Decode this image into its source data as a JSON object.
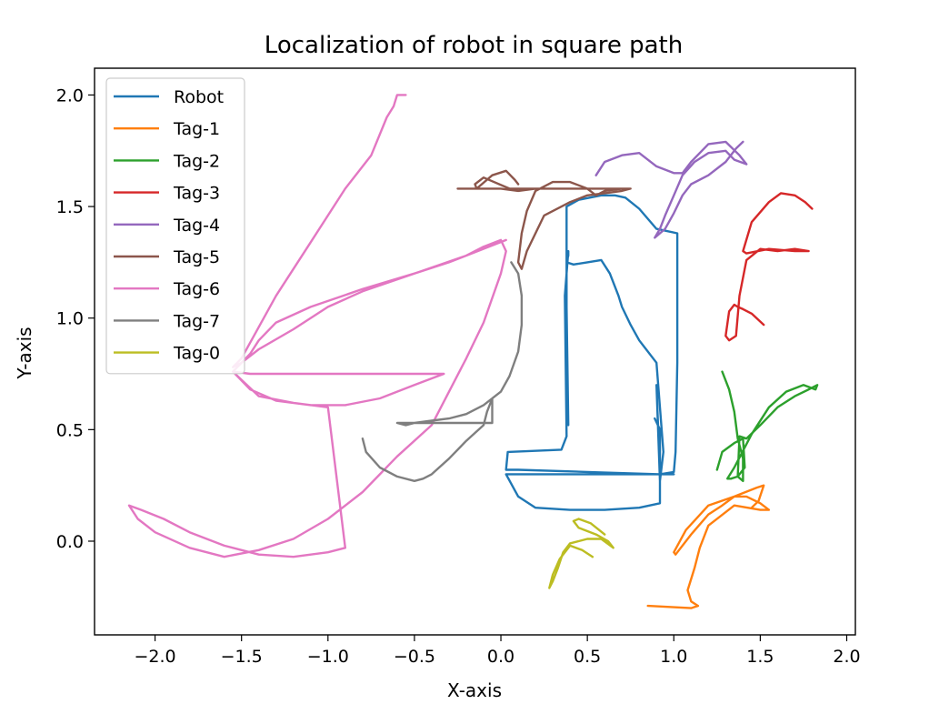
{
  "chart_data": {
    "type": "line",
    "title": "Localization of robot in square path",
    "xlabel": "X-axis",
    "ylabel": "Y-axis",
    "xlim": [
      -2.35,
      2.05
    ],
    "ylim": [
      -0.42,
      2.12
    ],
    "xticks": [
      -2.0,
      -1.5,
      -1.0,
      -0.5,
      0.0,
      0.5,
      1.0,
      1.5,
      2.0
    ],
    "xtick_labels": [
      "−2.0",
      "−1.5",
      "−1.0",
      "−0.5",
      "0.0",
      "0.5",
      "1.0",
      "1.5",
      "2.0"
    ],
    "yticks": [
      0.0,
      0.5,
      1.0,
      1.5,
      2.0
    ],
    "ytick_labels": [
      "0.0",
      "0.5",
      "1.0",
      "1.5",
      "2.0"
    ],
    "grid": false,
    "legend_position": "top-left",
    "series": [
      {
        "name": "Robot",
        "color": "#1f77b4",
        "x": [
          0.39,
          0.38,
          0.38,
          0.45,
          0.58,
          0.66,
          0.72,
          0.8,
          0.9,
          1.02,
          1.02,
          1.01,
          1.0,
          0.92,
          0.5,
          0.1,
          0.03,
          0.04,
          0.35,
          0.38,
          0.37,
          0.39,
          0.39,
          0.38,
          0.42,
          0.5,
          0.58,
          0.63,
          0.68,
          0.7,
          0.75,
          0.8,
          0.9,
          0.94,
          0.92,
          0.9,
          0.92,
          1.0,
          0.7,
          0.3,
          0.05,
          0.03,
          0.1,
          0.2,
          0.4,
          0.6,
          0.8,
          0.92,
          0.92,
          0.89
        ],
        "y": [
          0.52,
          1.05,
          1.5,
          1.53,
          1.55,
          1.55,
          1.54,
          1.49,
          1.4,
          1.38,
          0.8,
          0.4,
          0.31,
          0.3,
          0.31,
          0.32,
          0.32,
          0.4,
          0.41,
          0.47,
          1.1,
          1.3,
          1.28,
          1.25,
          1.24,
          1.25,
          1.26,
          1.2,
          1.1,
          1.05,
          0.97,
          0.9,
          0.8,
          0.4,
          0.27,
          0.7,
          0.3,
          0.3,
          0.3,
          0.3,
          0.3,
          0.3,
          0.2,
          0.15,
          0.14,
          0.14,
          0.15,
          0.17,
          0.5,
          0.55
        ]
      },
      {
        "name": "Tag-1",
        "color": "#ff7f0e",
        "x": [
          0.85,
          1.1,
          1.14,
          1.1,
          1.08,
          1.12,
          1.15,
          1.2,
          1.35,
          1.5,
          1.55,
          1.5,
          1.42,
          1.35,
          1.28,
          1.2,
          1.1,
          1.01,
          1.0,
          1.07,
          1.2,
          1.35,
          1.48,
          1.52,
          1.49,
          1.45
        ],
        "y": [
          -0.29,
          -0.3,
          -0.29,
          -0.27,
          -0.22,
          -0.12,
          -0.03,
          0.07,
          0.16,
          0.14,
          0.14,
          0.17,
          0.2,
          0.2,
          0.16,
          0.12,
          0.03,
          -0.06,
          -0.05,
          0.05,
          0.16,
          0.2,
          0.24,
          0.25,
          0.18,
          0.15
        ]
      },
      {
        "name": "Tag-2",
        "color": "#2ca02c",
        "x": [
          1.25,
          1.28,
          1.35,
          1.4,
          1.41,
          1.37,
          1.33,
          1.31,
          1.35,
          1.45,
          1.55,
          1.65,
          1.75,
          1.82,
          1.83,
          1.78,
          1.7,
          1.6,
          1.5,
          1.42,
          1.38,
          1.37,
          1.4,
          1.4,
          1.37,
          1.35,
          1.32,
          1.28
        ],
        "y": [
          0.32,
          0.4,
          0.44,
          0.46,
          0.33,
          0.29,
          0.28,
          0.28,
          0.33,
          0.48,
          0.6,
          0.67,
          0.7,
          0.68,
          0.7,
          0.68,
          0.65,
          0.6,
          0.52,
          0.46,
          0.47,
          0.29,
          0.27,
          0.37,
          0.46,
          0.58,
          0.68,
          0.76
        ]
      },
      {
        "name": "Tag-3",
        "color": "#d62728",
        "x": [
          1.52,
          1.45,
          1.4,
          1.37,
          1.35,
          1.32,
          1.3,
          1.32,
          1.36,
          1.38,
          1.42,
          1.5,
          1.6,
          1.7,
          1.78,
          1.7,
          1.55,
          1.42,
          1.4,
          1.45,
          1.55,
          1.62,
          1.7,
          1.76,
          1.8
        ],
        "y": [
          0.97,
          1.02,
          1.04,
          1.05,
          1.06,
          1.03,
          0.92,
          0.9,
          0.92,
          1.1,
          1.26,
          1.31,
          1.3,
          1.31,
          1.3,
          1.3,
          1.31,
          1.29,
          1.3,
          1.43,
          1.52,
          1.56,
          1.55,
          1.52,
          1.49
        ]
      },
      {
        "name": "Tag-4",
        "color": "#9467bd",
        "x": [
          0.55,
          0.6,
          0.7,
          0.8,
          0.9,
          1.0,
          1.05,
          1.1,
          1.2,
          1.3,
          1.38,
          1.42,
          1.35,
          1.3,
          1.2,
          1.12,
          1.05,
          1.0,
          0.95,
          0.92,
          0.89,
          0.95,
          1.0,
          1.05,
          1.1,
          1.2,
          1.3,
          1.36,
          1.4
        ],
        "y": [
          1.64,
          1.7,
          1.73,
          1.74,
          1.68,
          1.65,
          1.65,
          1.7,
          1.78,
          1.79,
          1.73,
          1.69,
          1.71,
          1.75,
          1.74,
          1.7,
          1.64,
          1.55,
          1.46,
          1.4,
          1.36,
          1.4,
          1.47,
          1.55,
          1.6,
          1.64,
          1.7,
          1.76,
          1.79
        ]
      },
      {
        "name": "Tag-5",
        "color": "#8c564b",
        "x": [
          -0.25,
          -0.1,
          0.0,
          0.1,
          0.2,
          0.3,
          0.4,
          0.5,
          0.6,
          0.7,
          0.75,
          0.7,
          0.6,
          0.5,
          0.4,
          0.25,
          0.15,
          0.12,
          0.1,
          0.12,
          0.15,
          0.2,
          0.3,
          0.4,
          0.5,
          0.55,
          0.6,
          0.7,
          0.72,
          0.5,
          0.2,
          0.05,
          -0.1,
          -0.15,
          -0.14,
          -0.05,
          0.03,
          0.08,
          0.1
        ],
        "y": [
          1.58,
          1.58,
          1.58,
          1.57,
          1.58,
          1.58,
          1.58,
          1.58,
          1.58,
          1.58,
          1.58,
          1.57,
          1.56,
          1.55,
          1.52,
          1.46,
          1.3,
          1.22,
          1.25,
          1.38,
          1.48,
          1.57,
          1.61,
          1.61,
          1.58,
          1.55,
          1.57,
          1.58,
          1.58,
          1.58,
          1.58,
          1.58,
          1.63,
          1.6,
          1.58,
          1.64,
          1.66,
          1.62,
          1.6
        ]
      },
      {
        "name": "Tag-6",
        "color": "#e377c2",
        "x": [
          -0.55,
          -0.6,
          -0.62,
          -0.66,
          -0.75,
          -0.9,
          -1.1,
          -1.3,
          -1.5,
          -1.55,
          -1.5,
          -1.45,
          -1.4,
          -1.3,
          -1.1,
          -0.8,
          -0.5,
          -0.3,
          -0.2,
          -0.1,
          0.0,
          0.03,
          0.0,
          -0.1,
          -0.2,
          -0.4,
          -0.6,
          -0.8,
          -1.0,
          -1.2,
          -1.4,
          -1.6,
          -1.8,
          -2.0,
          -2.1,
          -2.15,
          -2.08,
          -1.95,
          -1.8,
          -1.6,
          -1.4,
          -1.2,
          -1.0,
          -0.9,
          -1.0,
          -1.2,
          -1.4,
          -1.55,
          -1.45,
          -1.2,
          -0.9,
          -0.6,
          -0.4,
          -0.33,
          -0.5,
          -0.7,
          -0.9,
          -1.1,
          -1.3,
          -1.45,
          -1.55,
          -1.5,
          -1.4,
          -1.2,
          -1.0,
          -0.8,
          -0.5,
          -0.2,
          0.03
        ],
        "y": [
          2.0,
          2.0,
          1.95,
          1.9,
          1.73,
          1.58,
          1.34,
          1.1,
          0.82,
          0.78,
          0.8,
          0.84,
          0.9,
          0.98,
          1.05,
          1.13,
          1.2,
          1.25,
          1.28,
          1.32,
          1.35,
          1.3,
          1.2,
          0.98,
          0.82,
          0.52,
          0.38,
          0.22,
          0.1,
          0.01,
          -0.04,
          -0.07,
          -0.03,
          0.04,
          0.1,
          0.16,
          0.14,
          0.1,
          0.04,
          -0.02,
          -0.06,
          -0.07,
          -0.05,
          -0.03,
          0.6,
          0.62,
          0.65,
          0.76,
          0.75,
          0.75,
          0.75,
          0.75,
          0.75,
          0.75,
          0.7,
          0.64,
          0.61,
          0.61,
          0.63,
          0.68,
          0.76,
          0.8,
          0.86,
          0.95,
          1.05,
          1.12,
          1.2,
          1.28,
          1.35
        ]
      },
      {
        "name": "Tag-7",
        "color": "#7f7f7f",
        "x": [
          0.06,
          0.1,
          0.12,
          0.12,
          0.1,
          0.05,
          0.0,
          -0.1,
          -0.2,
          -0.3,
          -0.4,
          -0.5,
          -0.55,
          -0.6,
          -0.5,
          -0.4,
          -0.3,
          -0.15,
          -0.05,
          -0.05,
          -0.08,
          -0.1,
          -0.2,
          -0.3,
          -0.4,
          -0.45,
          -0.5,
          -0.6,
          -0.7,
          -0.78,
          -0.8
        ],
        "y": [
          1.25,
          1.2,
          1.1,
          0.97,
          0.85,
          0.74,
          0.67,
          0.61,
          0.57,
          0.55,
          0.54,
          0.53,
          0.52,
          0.53,
          0.53,
          0.53,
          0.53,
          0.53,
          0.53,
          0.64,
          0.58,
          0.52,
          0.45,
          0.37,
          0.3,
          0.28,
          0.27,
          0.29,
          0.33,
          0.4,
          0.46
        ]
      },
      {
        "name": "Tag-0",
        "color": "#bcbd22",
        "x": [
          0.53,
          0.47,
          0.4,
          0.34,
          0.3,
          0.28,
          0.3,
          0.33,
          0.36,
          0.4,
          0.45,
          0.5,
          0.58,
          0.65,
          0.62,
          0.55,
          0.45,
          0.42,
          0.45,
          0.52,
          0.6
        ],
        "y": [
          -0.07,
          -0.04,
          -0.02,
          -0.08,
          -0.15,
          -0.21,
          -0.18,
          -0.12,
          -0.05,
          -0.01,
          0.0,
          0.01,
          0.01,
          -0.03,
          0.0,
          0.03,
          0.06,
          0.09,
          0.1,
          0.08,
          0.03
        ]
      }
    ]
  }
}
